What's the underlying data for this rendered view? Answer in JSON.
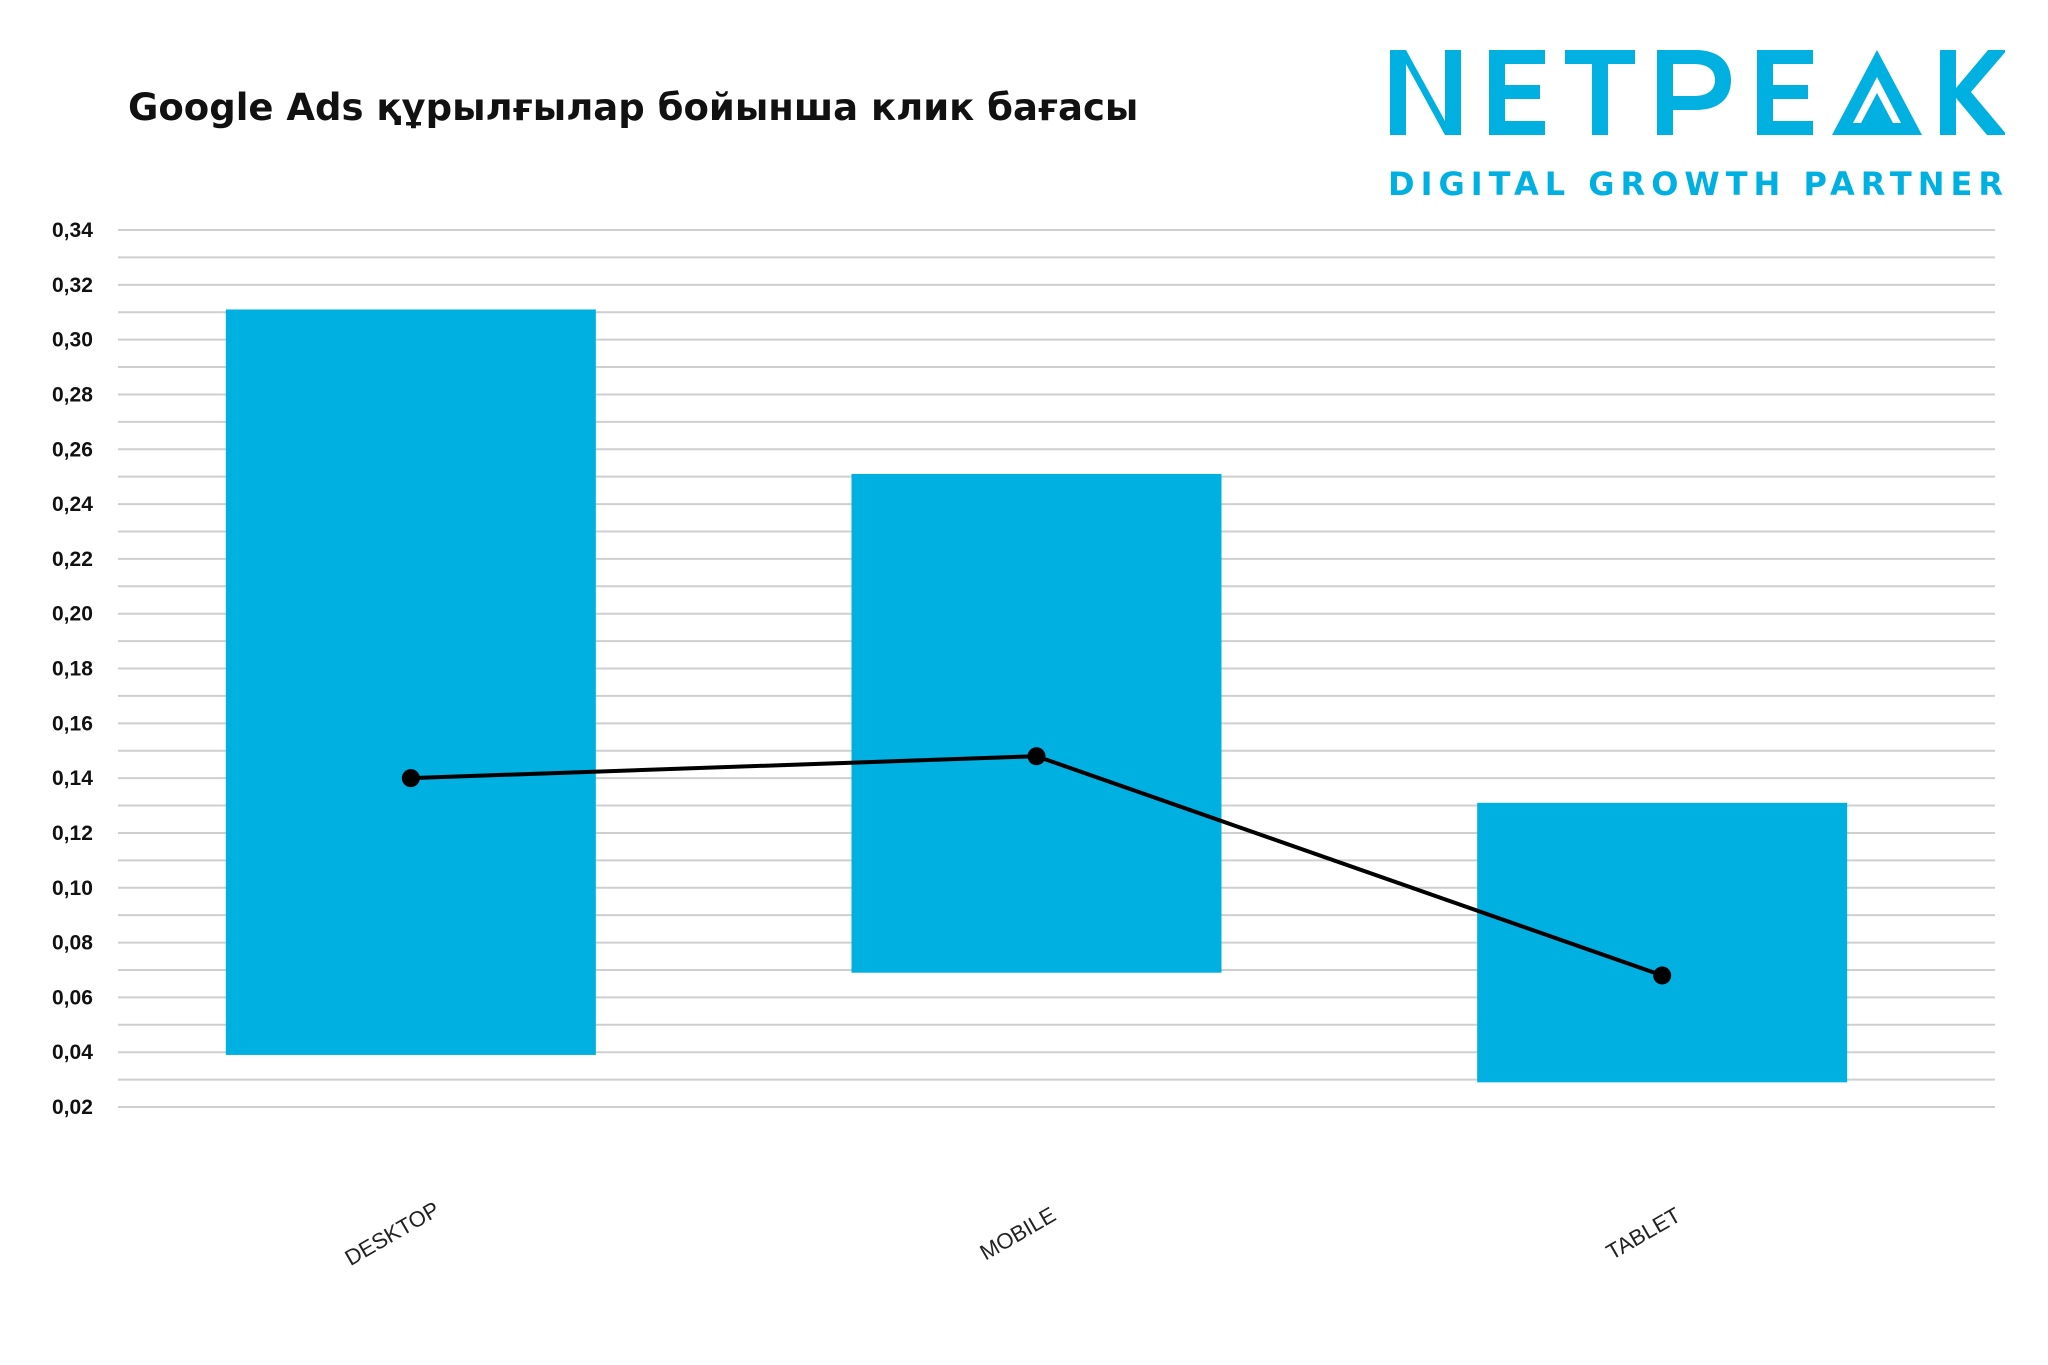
{
  "brand": {
    "name": "NETPEAK",
    "tagline": "DIGITAL GROWTH PARTNER",
    "color": "#00B0E0"
  },
  "chart_data": {
    "type": "bar",
    "title": "Google Ads құрылғылар бойынша клик бағасы",
    "categories": [
      "DESKTOP",
      "MOBILE",
      "TABLET"
    ],
    "ylim": [
      0.02,
      0.34
    ],
    "yticks": [
      "0,02",
      "0,04",
      "0,06",
      "0,08",
      "0,10",
      "0,12",
      "0,14",
      "0,16",
      "0,18",
      "0,20",
      "0,22",
      "0,24",
      "0,26",
      "0,28",
      "0,30",
      "0,32",
      "0,34"
    ],
    "grid": true,
    "floating_bars": [
      {
        "category": "DESKTOP",
        "low": 0.039,
        "high": 0.311
      },
      {
        "category": "MOBILE",
        "low": 0.069,
        "high": 0.251
      },
      {
        "category": "TABLET",
        "low": 0.029,
        "high": 0.131
      }
    ],
    "line_values": [
      0.14,
      0.148,
      0.068
    ],
    "bar_color": "#00B0E0",
    "line_color": "#000000"
  }
}
